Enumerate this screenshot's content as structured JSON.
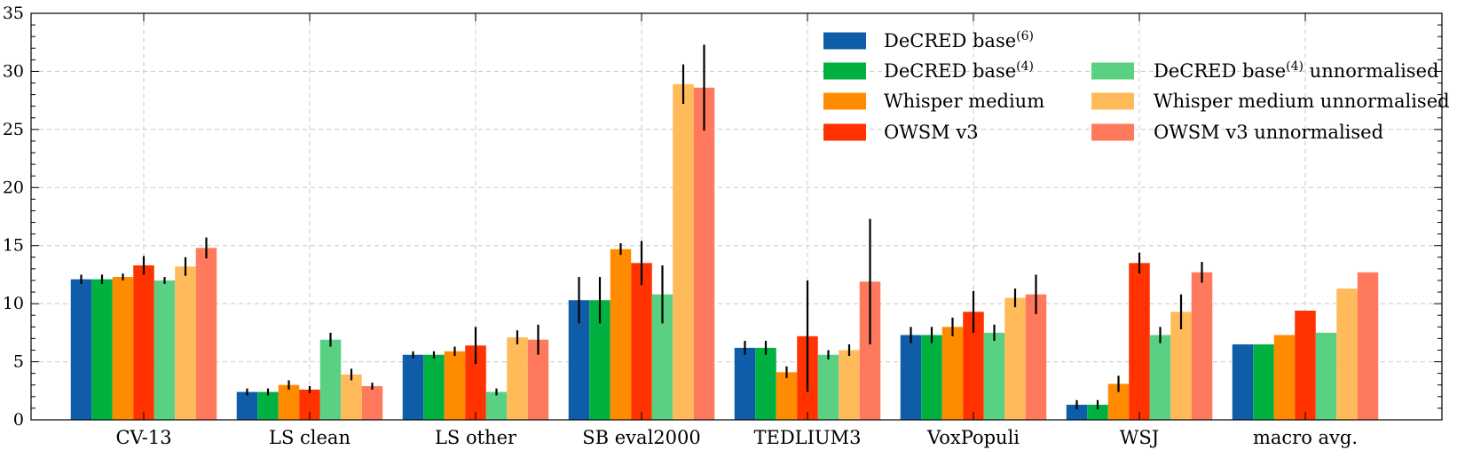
{
  "chart_data": {
    "type": "bar",
    "title": "",
    "xlabel": "",
    "ylabel": "",
    "ylim": [
      0,
      35
    ],
    "y_ticks": [
      0,
      5,
      10,
      15,
      20,
      25,
      30,
      35
    ],
    "grid": true,
    "legend_position": "top-right",
    "categories": [
      "CV-13",
      "LS clean",
      "LS other",
      "SB eval2000",
      "TEDLIUM3",
      "VoxPopuli",
      "WSJ",
      "macro avg."
    ],
    "series": [
      {
        "name": "DeCRED base",
        "superscript": "(6)",
        "color": "#0f5ca8",
        "values": [
          12.1,
          2.4,
          5.6,
          10.3,
          6.2,
          7.3,
          1.3,
          6.5
        ],
        "errors": [
          0.4,
          0.3,
          0.3,
          2.0,
          0.6,
          0.7,
          0.4,
          null
        ]
      },
      {
        "name": "DeCRED base",
        "superscript": "(4)",
        "color": "#00b140",
        "values": [
          12.1,
          2.4,
          5.6,
          10.3,
          6.2,
          7.3,
          1.3,
          6.5
        ],
        "errors": [
          0.4,
          0.3,
          0.3,
          2.0,
          0.6,
          0.7,
          0.4,
          null
        ]
      },
      {
        "name": "Whisper medium",
        "superscript": "",
        "color": "#ff8c00",
        "values": [
          12.3,
          3.0,
          5.9,
          14.7,
          4.1,
          8.0,
          3.1,
          7.3
        ],
        "errors": [
          0.3,
          0.4,
          0.4,
          0.5,
          0.5,
          0.8,
          0.7,
          null
        ]
      },
      {
        "name": "OWSM v3",
        "superscript": "",
        "color": "#ff3200",
        "values": [
          13.3,
          2.6,
          6.4,
          13.5,
          7.2,
          9.3,
          13.5,
          9.4
        ],
        "errors": [
          0.8,
          0.3,
          1.6,
          1.9,
          4.8,
          1.8,
          0.9,
          null
        ]
      },
      {
        "name": "DeCRED base",
        "superscript": "(4)",
        "suffix": " unnormalised",
        "color": "#5ad182",
        "values": [
          12.0,
          6.9,
          2.4,
          10.8,
          5.6,
          7.5,
          7.3,
          7.5
        ],
        "errors": [
          0.3,
          0.6,
          0.3,
          2.5,
          0.4,
          0.7,
          0.7,
          null
        ]
      },
      {
        "name": "Whisper medium unnormalised",
        "superscript": "",
        "color": "#ffba5a",
        "values": [
          13.2,
          3.9,
          7.1,
          28.9,
          6.0,
          10.5,
          9.3,
          11.3
        ],
        "errors": [
          0.8,
          0.5,
          0.6,
          1.7,
          0.5,
          0.8,
          1.5,
          null
        ]
      },
      {
        "name": "OWSM v3 unnormalised",
        "superscript": "",
        "color": "#ff7a5c",
        "values": [
          14.8,
          2.9,
          6.9,
          28.6,
          11.9,
          10.8,
          12.7,
          12.7
        ],
        "errors": [
          0.9,
          0.3,
          1.3,
          3.7,
          5.4,
          1.7,
          0.9,
          null
        ]
      }
    ]
  }
}
